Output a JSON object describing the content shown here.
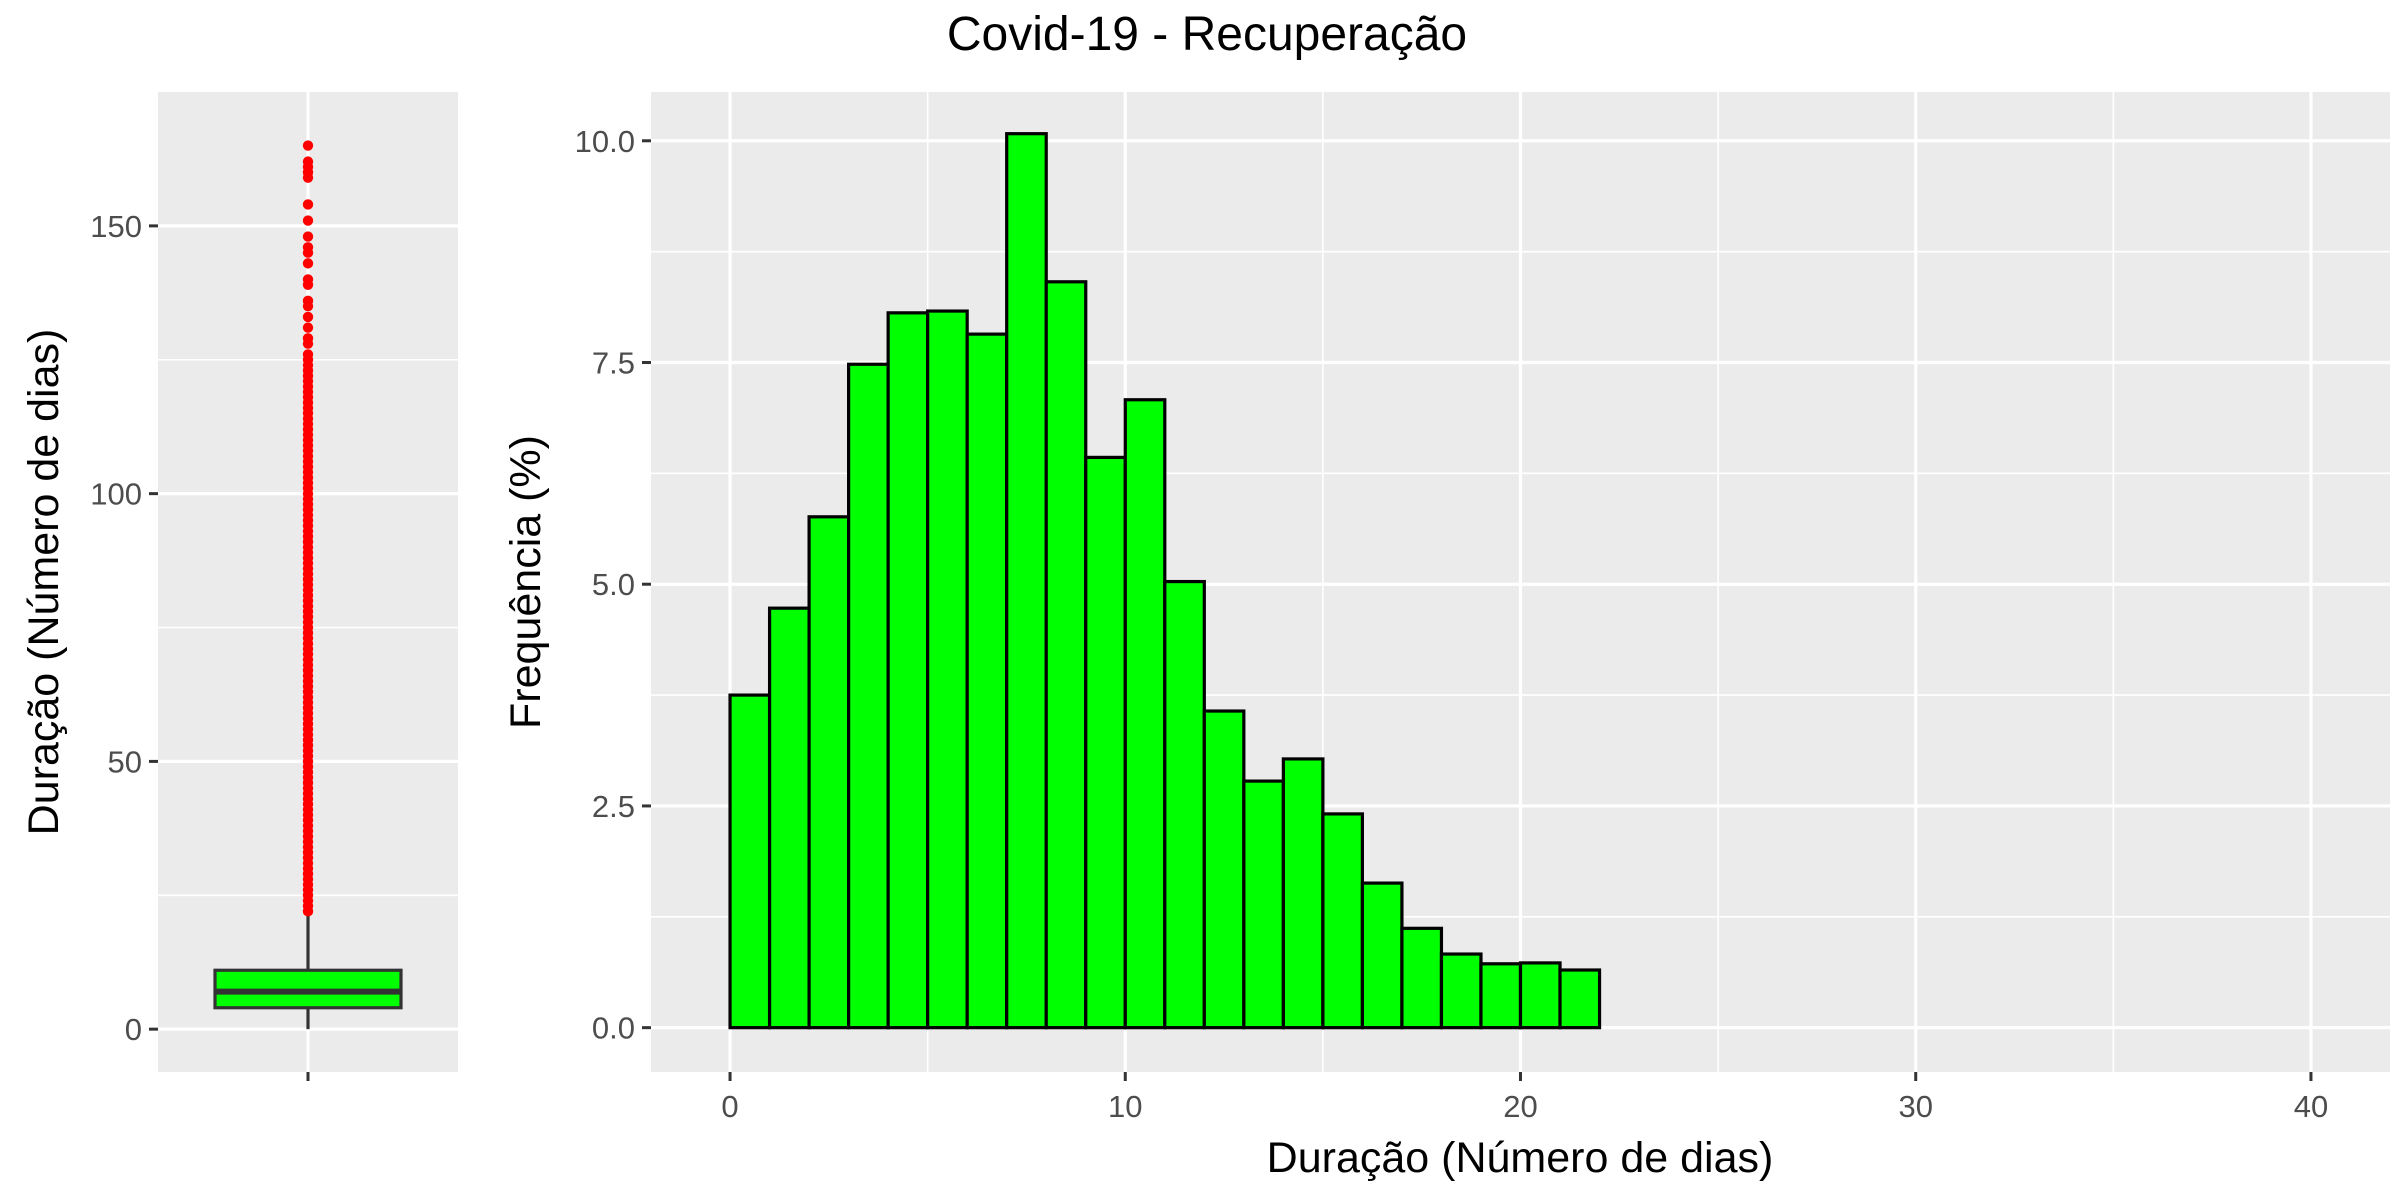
{
  "title": "Covid-19 - Recuperação",
  "colors": {
    "bar_fill": "#00ff00",
    "bar_outline": "#000000",
    "box_fill": "#00ff00",
    "outlier": "#ff0000",
    "panel_background": "#ebebeb",
    "grid": "#ffffff"
  },
  "chart_data": [
    {
      "type": "box",
      "ylabel": "Duração (Número de dias)",
      "xlabel": "",
      "ylim": [
        -8,
        175
      ],
      "yticks": [
        0,
        50,
        100,
        150
      ],
      "ytick_labels": [
        "0",
        "50",
        "100",
        "150"
      ],
      "grid": true,
      "box": {
        "whisker_low": 0,
        "q1": 4,
        "median": 7,
        "q3": 11,
        "whisker_high": 22
      },
      "outliers": [
        22,
        23,
        24,
        25,
        26,
        27,
        28,
        29,
        30,
        31,
        32,
        33,
        34,
        35,
        36,
        37,
        38,
        39,
        40,
        41,
        42,
        43,
        44,
        45,
        46,
        47,
        48,
        49,
        50,
        51,
        52,
        53,
        54,
        55,
        56,
        57,
        58,
        59,
        60,
        61,
        62,
        63,
        64,
        65,
        66,
        67,
        68,
        69,
        70,
        71,
        72,
        73,
        74,
        75,
        76,
        77,
        78,
        79,
        80,
        81,
        82,
        83,
        84,
        85,
        86,
        87,
        88,
        89,
        90,
        91,
        92,
        93,
        94,
        95,
        96,
        97,
        98,
        99,
        100,
        101,
        102,
        103,
        104,
        105,
        106,
        107,
        108,
        109,
        110,
        111,
        112,
        113,
        114,
        115,
        116,
        117,
        118,
        119,
        120,
        121,
        122,
        123,
        124,
        125,
        126,
        128,
        129,
        131,
        133,
        135,
        136,
        139,
        140,
        143,
        145,
        146,
        148,
        151,
        154,
        159,
        160,
        161,
        162,
        165
      ]
    },
    {
      "type": "bar",
      "subtype": "histogram",
      "xlabel": "Duração (Número de dias)",
      "ylabel": "Frequência (%)",
      "xlim": [
        -2,
        42
      ],
      "ylim": [
        -0.5,
        10.55
      ],
      "xticks": [
        0,
        10,
        20,
        30,
        40
      ],
      "xtick_labels": [
        "0",
        "10",
        "20",
        "30",
        "40"
      ],
      "yticks": [
        0,
        2.5,
        5,
        7.5,
        10
      ],
      "ytick_labels": [
        "0.0",
        "2.5",
        "5.0",
        "7.5",
        "10.0"
      ],
      "grid": true,
      "bin_width": 1,
      "bin_start": 0,
      "values": [
        3.75,
        4.73,
        5.76,
        7.48,
        8.06,
        8.08,
        7.82,
        10.08,
        8.41,
        6.43,
        7.08,
        5.03,
        3.57,
        2.78,
        3.03,
        2.41,
        1.63,
        1.12,
        0.83,
        0.72,
        0.73,
        0.65,
        0,
        0,
        0,
        0,
        0,
        0,
        0,
        0,
        0,
        0,
        0,
        0,
        0,
        0,
        0,
        0,
        0,
        0
      ]
    }
  ]
}
